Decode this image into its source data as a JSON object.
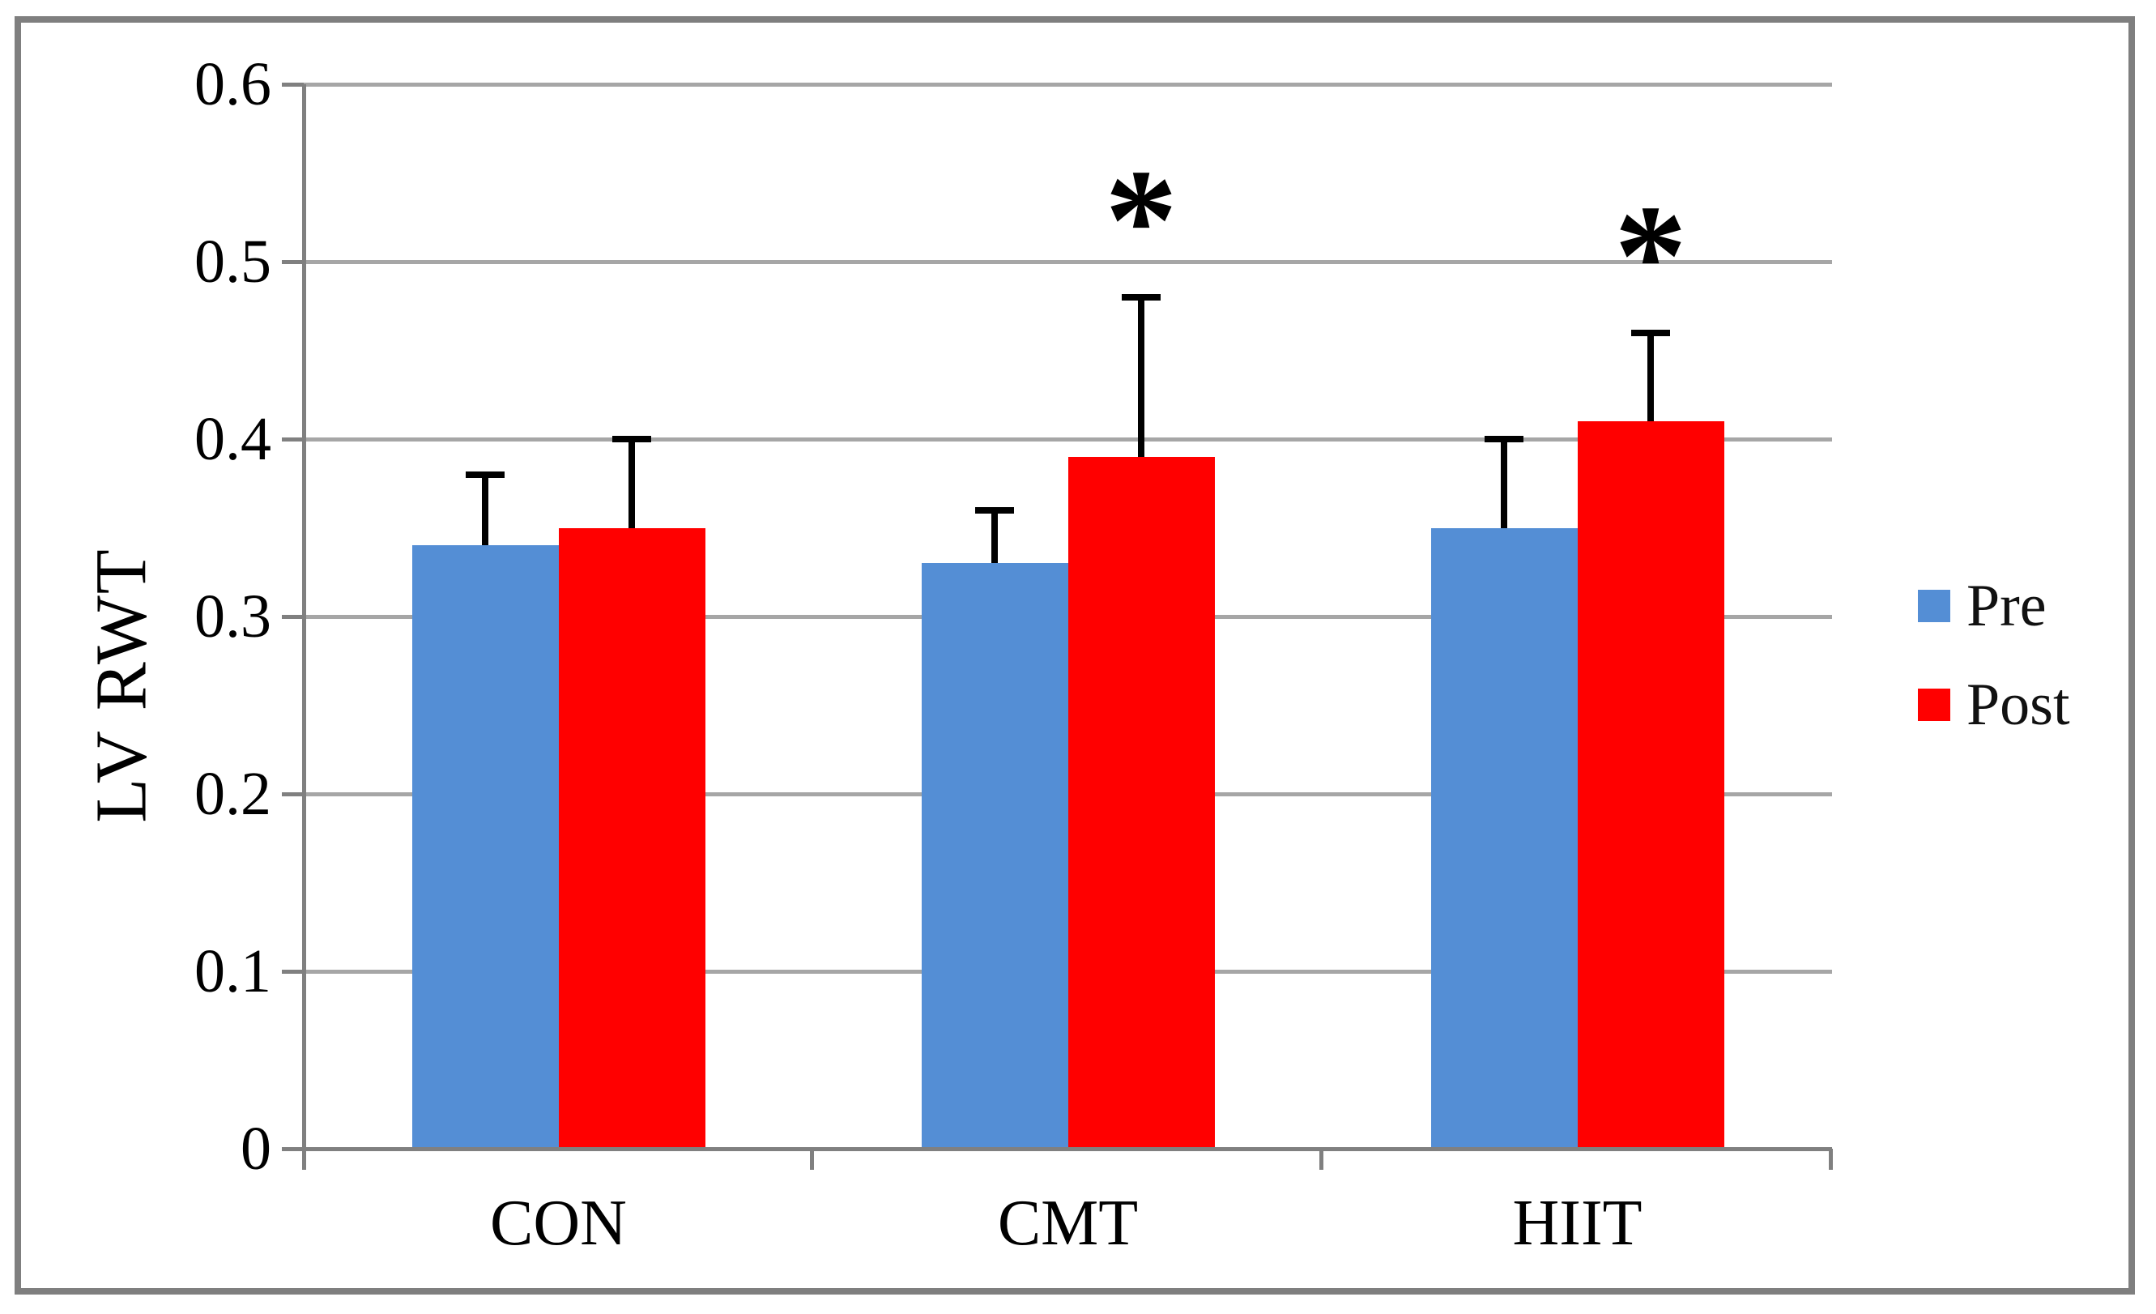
{
  "chart_data": {
    "type": "bar",
    "title": "",
    "xlabel": "",
    "ylabel": "LV RWT",
    "ylim": [
      0,
      0.6
    ],
    "ytick_step": 0.1,
    "ytick_labels": [
      "0",
      "0.1",
      "0.2",
      "0.3",
      "0.4",
      "0.5",
      "0.6"
    ],
    "categories": [
      "CON",
      "CMT",
      "HIIT"
    ],
    "series": [
      {
        "name": "Pre",
        "color": "#548ED5",
        "values": [
          0.34,
          0.33,
          0.35
        ],
        "error_up": [
          0.04,
          0.03,
          0.05
        ]
      },
      {
        "name": "Post",
        "color": "#FF0000",
        "values": [
          0.35,
          0.39,
          0.41
        ],
        "error_up": [
          0.05,
          0.09,
          0.05
        ]
      }
    ],
    "significance": [
      {
        "category": "CMT",
        "series": "Post",
        "marker": "*"
      },
      {
        "category": "HIIT",
        "series": "Post",
        "marker": "*"
      }
    ],
    "grid": true,
    "legend_position": "right",
    "error_bars": "upper-only"
  }
}
